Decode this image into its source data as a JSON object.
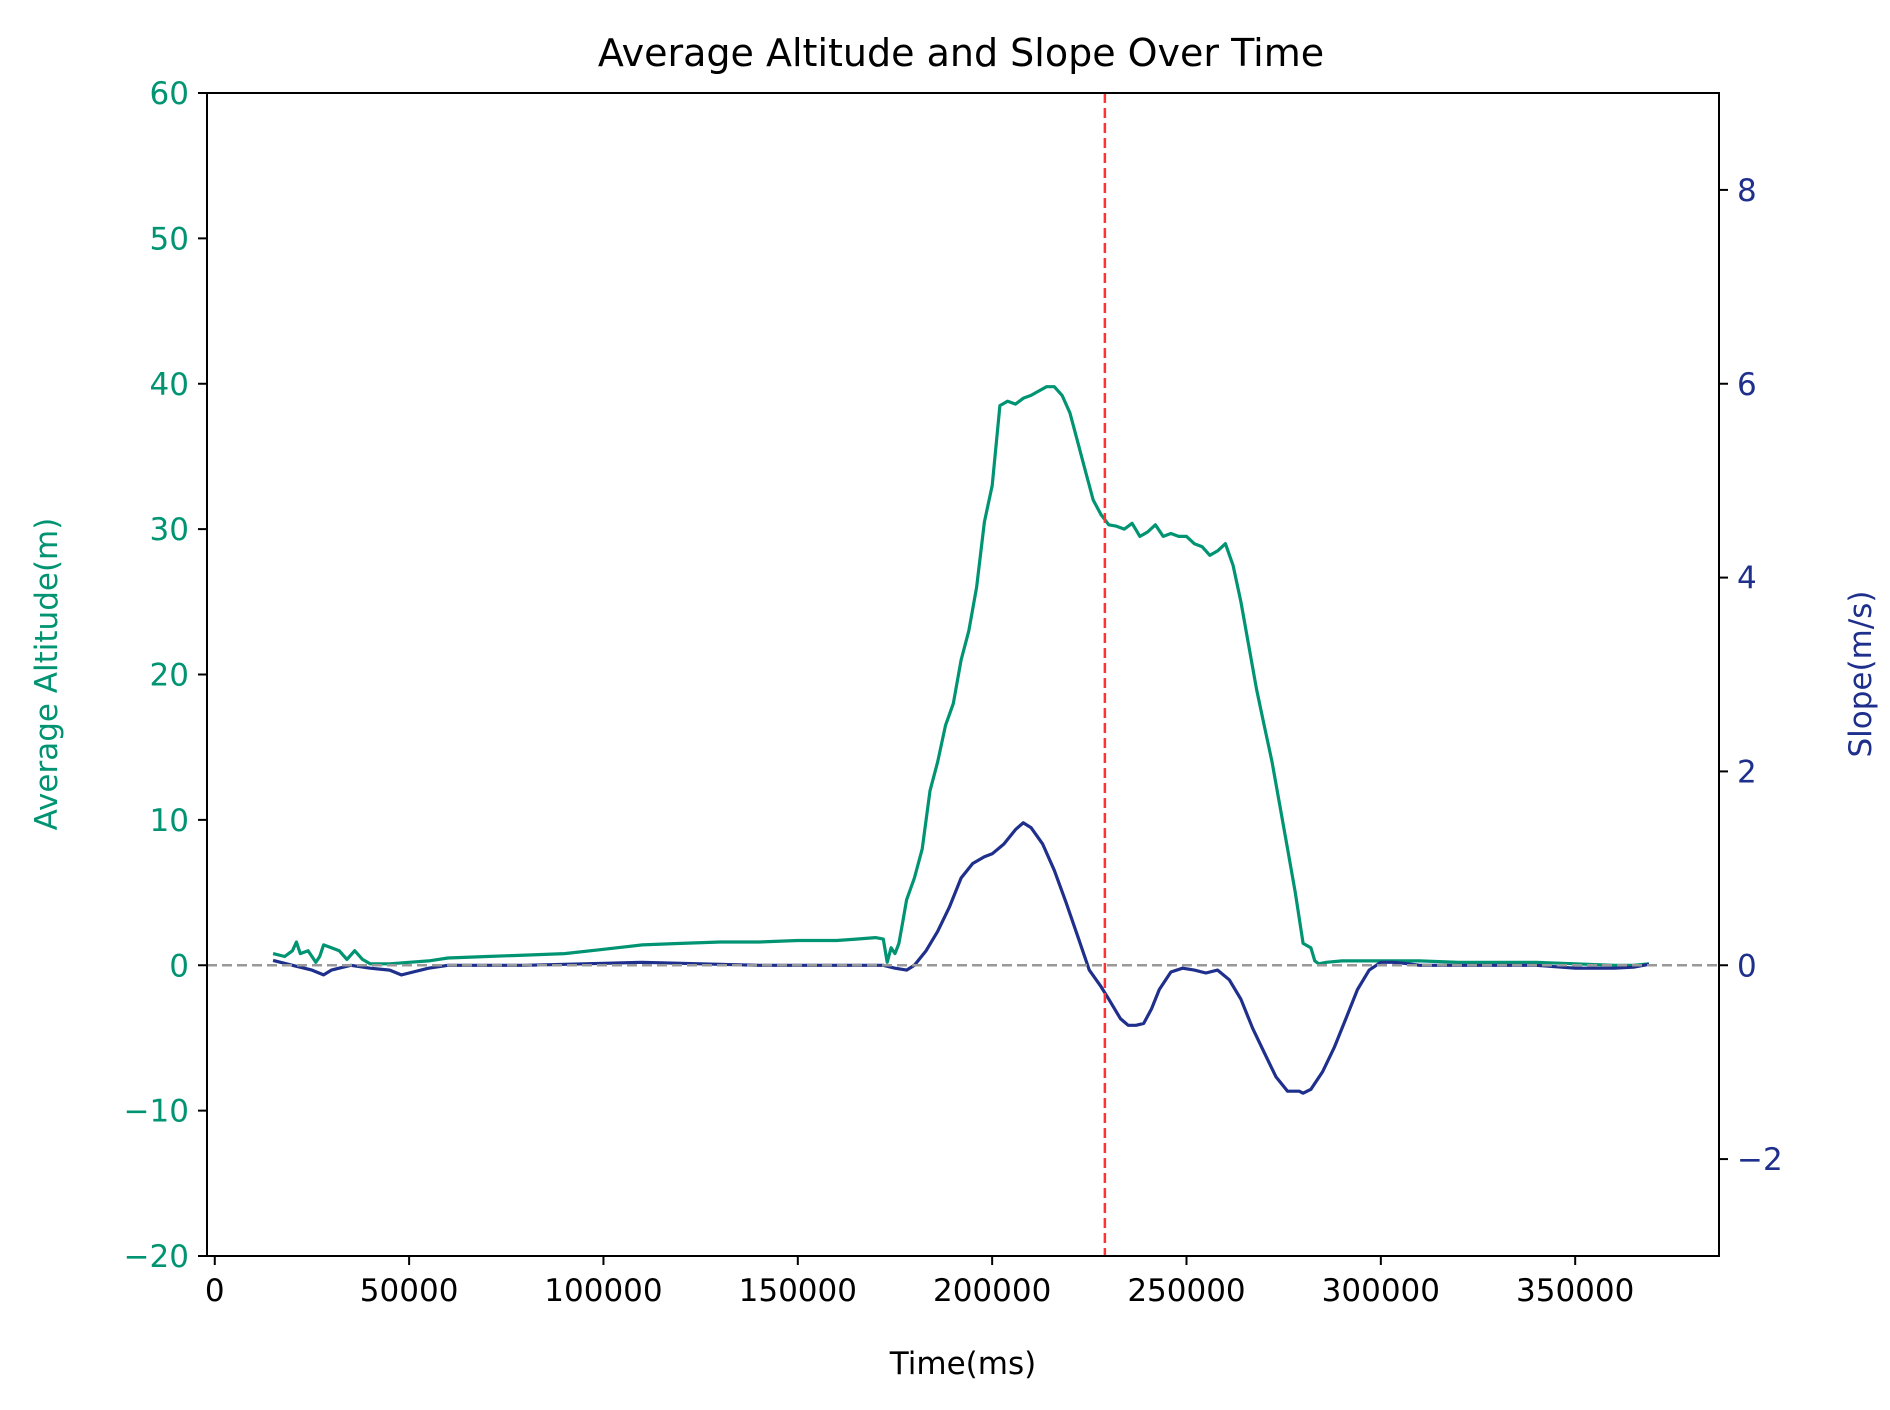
{
  "chart_data": {
    "type": "line",
    "title": "Average Altitude and Slope Over Time",
    "xlabel": "Time(ms)",
    "ylabel_left": "Average Altitude(m)",
    "ylabel_right": "Slope(m/s)",
    "xlim": [
      -2000,
      387000
    ],
    "ylim_left": [
      -20,
      60
    ],
    "ylim_right": [
      -3,
      9
    ],
    "x_ticks": [
      0,
      50000,
      100000,
      150000,
      200000,
      250000,
      300000,
      350000
    ],
    "x_tick_labels": [
      "0",
      "50000",
      "100000",
      "150000",
      "200000",
      "250000",
      "300000",
      "350000"
    ],
    "y_left_ticks": [
      -20,
      -10,
      0,
      10,
      20,
      30,
      40,
      50,
      60
    ],
    "y_left_tick_labels": [
      "−20",
      "−10",
      "0",
      "10",
      "20",
      "30",
      "40",
      "50",
      "60"
    ],
    "y_right_ticks": [
      -2,
      0,
      2,
      4,
      6,
      8
    ],
    "y_right_tick_labels": [
      "−2",
      "0",
      "2",
      "4",
      "6",
      "8"
    ],
    "grid": false,
    "colors": {
      "altitude": "#009473",
      "slope": "#1f2f8c",
      "zero_line": "#999999",
      "event_line": "#ff3333"
    },
    "reference_lines": [
      {
        "kind": "horizontal",
        "y": 0,
        "axis": "left",
        "style": "dashed",
        "color": "#999999"
      },
      {
        "kind": "vertical",
        "x": 229000,
        "style": "dashed",
        "color": "#ff3333"
      }
    ],
    "series": [
      {
        "axis": "left",
        "color": "#009473",
        "x": [
          15000,
          18000,
          20000,
          21000,
          22000,
          24000,
          26000,
          27000,
          28000,
          30000,
          32000,
          34000,
          36000,
          38000,
          40000,
          45000,
          50000,
          55000,
          60000,
          70000,
          80000,
          90000,
          100000,
          110000,
          120000,
          130000,
          140000,
          150000,
          160000,
          165000,
          170000,
          172000,
          173000,
          174000,
          175000,
          176000,
          177000,
          178000,
          180000,
          182000,
          184000,
          186000,
          188000,
          190000,
          192000,
          194000,
          196000,
          198000,
          200000,
          202000,
          204000,
          206000,
          208000,
          210000,
          212000,
          214000,
          216000,
          218000,
          220000,
          222000,
          224000,
          226000,
          228000,
          230000,
          232000,
          234000,
          236000,
          238000,
          240000,
          242000,
          244000,
          246000,
          248000,
          250000,
          252000,
          254000,
          256000,
          258000,
          260000,
          262000,
          264000,
          266000,
          268000,
          270000,
          272000,
          274000,
          276000,
          278000,
          280000,
          282000,
          283000,
          284000,
          286000,
          290000,
          300000,
          310000,
          320000,
          330000,
          340000,
          350000,
          360000,
          365000,
          369000
        ],
        "y": [
          0.8,
          0.6,
          1.0,
          1.6,
          0.8,
          1.0,
          0.2,
          0.6,
          1.4,
          1.2,
          1.0,
          0.4,
          1.0,
          0.4,
          0.1,
          0.1,
          0.2,
          0.3,
          0.5,
          0.6,
          0.7,
          0.8,
          1.1,
          1.4,
          1.5,
          1.6,
          1.6,
          1.7,
          1.7,
          1.8,
          1.9,
          1.8,
          0.2,
          1.2,
          0.8,
          1.5,
          3.0,
          4.5,
          6.0,
          8.0,
          12.0,
          14.0,
          16.5,
          18.0,
          21.0,
          23.0,
          26.0,
          30.5,
          33.0,
          38.5,
          38.8,
          38.6,
          39.0,
          39.2,
          39.5,
          39.8,
          39.8,
          39.2,
          38.0,
          36.0,
          34.0,
          32.0,
          31.0,
          30.3,
          30.2,
          30.0,
          30.4,
          29.5,
          29.8,
          30.3,
          29.5,
          29.7,
          29.5,
          29.5,
          29.0,
          28.8,
          28.2,
          28.5,
          29.0,
          27.5,
          25.0,
          22.0,
          19.0,
          16.5,
          14.0,
          11.0,
          8.0,
          5.0,
          1.5,
          1.2,
          0.3,
          0.1,
          0.2,
          0.3,
          0.3,
          0.3,
          0.2,
          0.2,
          0.2,
          0.1,
          0.0,
          0.0,
          0.1
        ]
      },
      {
        "axis": "right",
        "color": "#1f2f8c",
        "x": [
          15000,
          20000,
          25000,
          28000,
          30000,
          35000,
          40000,
          45000,
          48000,
          50000,
          55000,
          60000,
          70000,
          80000,
          90000,
          100000,
          110000,
          120000,
          130000,
          140000,
          150000,
          160000,
          170000,
          172000,
          175000,
          178000,
          180000,
          183000,
          186000,
          189000,
          192000,
          195000,
          198000,
          200000,
          203000,
          206000,
          208000,
          210000,
          213000,
          216000,
          219000,
          222000,
          225000,
          228000,
          230000,
          233000,
          235000,
          237000,
          239000,
          241000,
          243000,
          246000,
          249000,
          252000,
          255000,
          258000,
          261000,
          264000,
          267000,
          270000,
          273000,
          276000,
          279000,
          280000,
          282000,
          285000,
          288000,
          291000,
          294000,
          297000,
          300000,
          303000,
          306000,
          310000,
          320000,
          330000,
          340000,
          350000,
          360000,
          365000,
          369000
        ],
        "y": [
          0.05,
          0.0,
          -0.05,
          -0.1,
          -0.05,
          0.0,
          -0.03,
          -0.05,
          -0.1,
          -0.08,
          -0.03,
          0.0,
          0.0,
          0.0,
          0.01,
          0.02,
          0.03,
          0.02,
          0.01,
          0.0,
          0.0,
          0.0,
          0.0,
          0.0,
          -0.03,
          -0.05,
          0.0,
          0.15,
          0.35,
          0.6,
          0.9,
          1.05,
          1.12,
          1.15,
          1.25,
          1.4,
          1.47,
          1.42,
          1.25,
          0.98,
          0.65,
          0.3,
          -0.05,
          -0.22,
          -0.35,
          -0.55,
          -0.62,
          -0.62,
          -0.6,
          -0.45,
          -0.25,
          -0.07,
          -0.03,
          -0.05,
          -0.08,
          -0.05,
          -0.15,
          -0.35,
          -0.65,
          -0.9,
          -1.15,
          -1.3,
          -1.3,
          -1.32,
          -1.28,
          -1.1,
          -0.85,
          -0.55,
          -0.25,
          -0.05,
          0.03,
          0.03,
          0.02,
          0.0,
          0.0,
          0.0,
          0.0,
          -0.03,
          -0.03,
          -0.02,
          0.01
        ]
      }
    ]
  }
}
